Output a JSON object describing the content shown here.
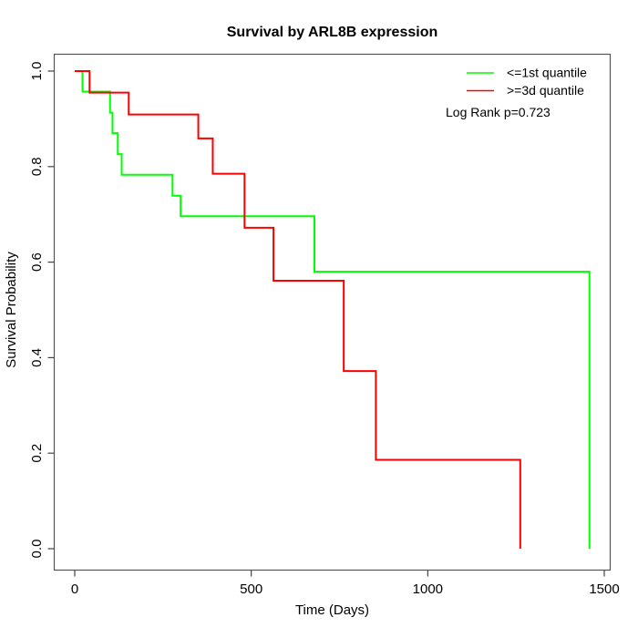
{
  "title": "Survival by ARL8B expression",
  "colors": {
    "frame": "#555555",
    "tick": "#444444",
    "text": "#000000",
    "low_quantile": "#00ff00",
    "high_quantile": "#ff0000"
  },
  "legend": {
    "items": [
      {
        "label": "<=1st quantile",
        "color": "#00ff00"
      },
      {
        "label": ">=3d quantile",
        "color": "#ff0000"
      }
    ],
    "annotation": "Log Rank p=0.723"
  },
  "chart_data": {
    "type": "line",
    "subtype": "kaplan-meier-step",
    "title": "Survival by ARL8B expression",
    "xlabel": "Time (Days)",
    "ylabel": "Survival Probability",
    "xlim": [
      0,
      1500
    ],
    "ylim": [
      0,
      1
    ],
    "x_ticks": [
      0,
      500,
      1000,
      1500
    ],
    "y_ticks": [
      0.0,
      0.2,
      0.4,
      0.6,
      0.8,
      1.0
    ],
    "grid": false,
    "legend_position": "top-right",
    "annotation": "Log Rank p=0.723",
    "series": [
      {
        "name": "<=1st quantile",
        "color": "#00ff00",
        "points": [
          [
            0,
            1.0
          ],
          [
            22,
            0.957
          ],
          [
            100,
            0.913
          ],
          [
            107,
            0.87
          ],
          [
            122,
            0.826
          ],
          [
            133,
            0.783
          ],
          [
            277,
            0.739
          ],
          [
            300,
            0.696
          ],
          [
            679,
            0.58
          ],
          [
            1458,
            0.0
          ]
        ]
      },
      {
        "name": ">=3d quantile",
        "color": "#ff0000",
        "points": [
          [
            0,
            1.0
          ],
          [
            42,
            0.955
          ],
          [
            153,
            0.909
          ],
          [
            350,
            0.859
          ],
          [
            391,
            0.785
          ],
          [
            481,
            0.672
          ],
          [
            563,
            0.561
          ],
          [
            762,
            0.372
          ],
          [
            853,
            0.186
          ],
          [
            1262,
            0.0
          ]
        ]
      }
    ]
  }
}
